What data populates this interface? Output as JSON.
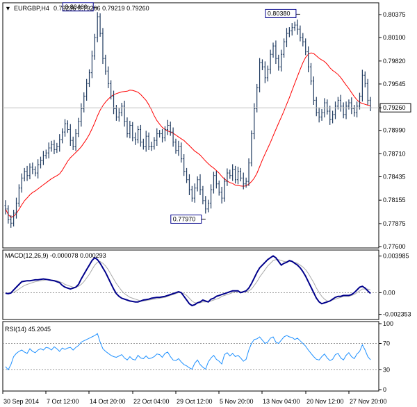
{
  "chart_data": [
    {
      "panel": "price",
      "type": "ohlc",
      "symbol_header": "EURGBP,H4",
      "header_values": "0.79236 0.79266 0.79219 0.79260",
      "ylim": [
        0.776,
        0.805
      ],
      "yticks": [
        "0.80375",
        "0.80100",
        "0.79820",
        "0.79545",
        "0.79260",
        "0.78990",
        "0.78710",
        "0.78435",
        "0.78155",
        "0.77875",
        "0.77600"
      ],
      "current_price": "0.79260",
      "annotations": [
        {
          "label": "0.80460",
          "bar": 34,
          "value": 0.8046
        },
        {
          "label": "0.77970",
          "bar": 74,
          "value": 0.7797
        },
        {
          "label": "0.80380",
          "bar": 109,
          "value": 0.8038
        }
      ],
      "ma_color": "#ff0000",
      "bar_color": "#1f3a5f",
      "close": [
        0.7805,
        0.7792,
        0.7788,
        0.78,
        0.7812,
        0.783,
        0.7842,
        0.785,
        0.7845,
        0.7855,
        0.7852,
        0.7848,
        0.7858,
        0.7863,
        0.7869,
        0.7872,
        0.7878,
        0.7882,
        0.7876,
        0.788,
        0.7888,
        0.7897,
        0.7907,
        0.79,
        0.7887,
        0.788,
        0.7895,
        0.791,
        0.7925,
        0.794,
        0.7955,
        0.7968,
        0.7988,
        0.801,
        0.8035,
        0.8015,
        0.7985,
        0.797,
        0.7955,
        0.794,
        0.7925,
        0.7915,
        0.792,
        0.7928,
        0.791,
        0.7895,
        0.7905,
        0.789,
        0.7888,
        0.79,
        0.7885,
        0.788,
        0.7892,
        0.788,
        0.788,
        0.7887,
        0.7895,
        0.7895,
        0.789,
        0.79,
        0.7905,
        0.7897,
        0.7885,
        0.7875,
        0.788,
        0.7865,
        0.785,
        0.784,
        0.7828,
        0.7818,
        0.783,
        0.784,
        0.7828,
        0.7815,
        0.7805,
        0.7812,
        0.7828,
        0.7845,
        0.7835,
        0.7825,
        0.7818,
        0.7838,
        0.7848,
        0.7845,
        0.7852,
        0.784,
        0.785,
        0.7842,
        0.7835,
        0.7838,
        0.786,
        0.7895,
        0.7925,
        0.795,
        0.798,
        0.7975,
        0.7962,
        0.7972,
        0.799,
        0.8,
        0.7985,
        0.7975,
        0.799,
        0.8005,
        0.8015,
        0.8018,
        0.8022,
        0.8025,
        0.802,
        0.801,
        0.8005,
        0.7993,
        0.7975,
        0.7958,
        0.7935,
        0.792,
        0.7915,
        0.792,
        0.7932,
        0.7922,
        0.7912,
        0.7918,
        0.7928,
        0.7935,
        0.7928,
        0.7918,
        0.7928,
        0.7932,
        0.7925,
        0.792,
        0.7928,
        0.794,
        0.7965,
        0.7955,
        0.7935,
        0.7926
      ]
    },
    {
      "panel": "macd",
      "type": "line",
      "title": "MACD(12,26,9) -0.000078 0.000293",
      "yticks": [
        "0.003985",
        "0.00",
        "-0.002353"
      ],
      "ylim": [
        -0.00276,
        0.004262
      ],
      "series": [
        {
          "name": "MACD",
          "color": "#00008b",
          "values": [
            -5e-05,
            -0.0001,
            -3e-05,
            0.0003,
            0.0006,
            0.0009,
            0.0012,
            0.00125,
            0.0013,
            0.0013,
            0.00135,
            0.0014,
            0.0014,
            0.00145,
            0.0015,
            0.00145,
            0.0014,
            0.00135,
            0.0013,
            0.0012,
            0.0011,
            0.0008,
            0.0006,
            0.0005,
            0.0004,
            0.0005,
            0.0006,
            0.0009,
            0.0015,
            0.002,
            0.0025,
            0.003,
            0.0035,
            0.0038,
            0.0036,
            0.0032,
            0.0027,
            0.0022,
            0.0016,
            0.001,
            0.0004,
            -0.0001,
            -0.0004,
            -0.0006,
            -0.0007,
            -0.0008,
            -0.0009,
            -0.00095,
            -0.001,
            -0.001,
            -0.0009,
            -0.0008,
            -0.00075,
            -0.0007,
            -0.0006,
            -0.00055,
            -0.0005,
            -0.0005,
            -0.00045,
            -0.0004,
            -0.0003,
            -0.0002,
            -0.0001,
            0.0,
            0.0001,
            0.0,
            -0.0004,
            -0.0008,
            -0.0012,
            -0.0014,
            -0.0013,
            -0.0011,
            -0.001,
            -0.0008,
            -0.0009,
            -0.001,
            -0.0007,
            -0.0006,
            -0.0004,
            -0.0003,
            -0.0002,
            -0.0001,
            0.0,
            0.0001,
            0.0002,
            0.0002,
            0.0002,
            0.0,
            0.0001,
            0.0002,
            0.0005,
            0.001,
            0.0016,
            0.0022,
            0.0027,
            0.003,
            0.0033,
            0.0036,
            0.0038,
            0.004,
            0.0038,
            0.0034,
            0.003,
            0.0032,
            0.0033,
            0.0035,
            0.0034,
            0.0032,
            0.003,
            0.0027,
            0.0023,
            0.0018,
            0.0012,
            0.0006,
            0.0,
            -0.0006,
            -0.001,
            -0.0012,
            -0.0011,
            -0.001,
            -0.0009,
            -0.0007,
            -0.0005,
            -0.0004,
            -0.0004,
            -0.0003,
            -0.0003,
            -0.0003,
            -0.0002,
            0.0,
            0.0003,
            0.0006,
            0.0007,
            0.0005,
            0.0002,
            -7.8e-05
          ]
        },
        {
          "name": "Signal",
          "color": "#a9a9a9",
          "values": [
            0.0,
            -5e-05,
            -4e-05,
            5e-05,
            0.0002,
            0.0004,
            0.0006,
            0.0008,
            0.0009,
            0.001,
            0.0011,
            0.0012,
            0.00125,
            0.0013,
            0.00135,
            0.0014,
            0.0014,
            0.00138,
            0.00135,
            0.0013,
            0.0012,
            0.0011,
            0.0009,
            0.0008,
            0.0007,
            0.0006,
            0.0006,
            0.0007,
            0.0009,
            0.0012,
            0.0016,
            0.002,
            0.0025,
            0.003,
            0.0033,
            0.0034,
            0.0032,
            0.0029,
            0.0025,
            0.002,
            0.0015,
            0.001,
            0.0006,
            0.0002,
            -0.0001,
            -0.0003,
            -0.0005,
            -0.0006,
            -0.0007,
            -0.0008,
            -0.0009,
            -0.0009,
            -0.00085,
            -0.0008,
            -0.00075,
            -0.0007,
            -0.00065,
            -0.0006,
            -0.00055,
            -0.0005,
            -0.0004,
            -0.0003,
            -0.0002,
            -0.0001,
            0.0,
            0.0,
            -0.0001,
            -0.0003,
            -0.0006,
            -0.0009,
            -0.0011,
            -0.0011,
            -0.0011,
            -0.001,
            -0.001,
            -0.001,
            -0.0009,
            -0.0008,
            -0.0007,
            -0.0006,
            -0.0004,
            -0.0003,
            -0.0002,
            -0.0001,
            0.0,
            0.0001,
            0.0001,
            0.0001,
            0.0001,
            0.0001,
            0.0002,
            0.0004,
            0.0008,
            0.0012,
            0.0017,
            0.0021,
            0.0025,
            0.0029,
            0.0032,
            0.0035,
            0.0036,
            0.0036,
            0.0035,
            0.0034,
            0.0034,
            0.0034,
            0.0034,
            0.0033,
            0.0032,
            0.003,
            0.0028,
            0.0025,
            0.0021,
            0.0016,
            0.0011,
            0.0005,
            0.0,
            -0.0004,
            -0.0007,
            -0.0009,
            -0.0009,
            -0.0008,
            -0.0007,
            -0.0006,
            -0.0005,
            -0.0004,
            -0.0004,
            -0.0004,
            -0.0003,
            -0.0002,
            0.0,
            0.0002,
            0.0004,
            0.0004,
            0.0004,
            0.000293
          ]
        }
      ]
    },
    {
      "panel": "rsi",
      "type": "line",
      "title": "RSI(14) 45.2045",
      "yticks": [
        "100",
        "70",
        "30",
        "0"
      ],
      "ylim": [
        0,
        100
      ],
      "levels": [
        70,
        30
      ],
      "series": [
        {
          "name": "RSI",
          "color": "#1e90ff",
          "values": [
            35,
            30,
            38,
            50,
            55,
            58,
            60,
            57,
            55,
            62,
            58,
            56,
            60,
            62,
            60,
            64,
            63,
            60,
            65,
            62,
            58,
            63,
            61,
            63,
            64,
            60,
            64,
            67,
            72,
            74,
            76,
            78,
            80,
            82,
            85,
            72,
            62,
            58,
            55,
            52,
            50,
            49,
            51,
            53,
            48,
            45,
            50,
            46,
            45,
            52,
            48,
            47,
            51,
            47,
            48,
            50,
            54,
            53,
            49,
            55,
            57,
            50,
            45,
            44,
            47,
            42,
            38,
            36,
            33,
            31,
            40,
            45,
            38,
            34,
            31,
            42,
            48,
            52,
            46,
            43,
            39,
            53,
            56,
            51,
            55,
            50,
            52,
            48,
            43,
            46,
            60,
            70,
            76,
            77,
            80,
            75,
            70,
            72,
            78,
            80,
            72,
            70,
            75,
            80,
            82,
            80,
            79,
            76,
            78,
            74,
            70,
            66,
            60,
            55,
            50,
            46,
            45,
            50,
            54,
            48,
            44,
            46,
            53,
            55,
            48,
            45,
            52,
            56,
            50,
            47,
            54,
            58,
            68,
            60,
            50,
            45.2045
          ]
        }
      ]
    }
  ],
  "xaxis_labels": [
    "30 Sep 2014",
    "7 Oct 12:00",
    "14 Oct 20:00",
    "22 Oct 04:00",
    "29 Oct 12:00",
    "5 Nov 20:00",
    "13 Nov 04:00",
    "20 Nov 12:00",
    "27 Nov 20:00"
  ]
}
